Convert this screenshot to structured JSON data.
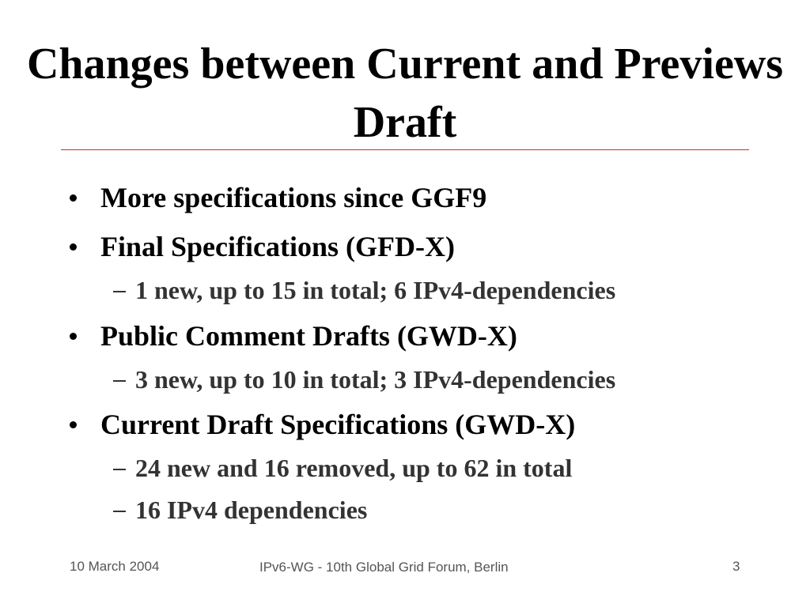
{
  "title": "Changes between Current and Previews Draft",
  "bullets": [
    {
      "text": "More specifications since GGF9"
    },
    {
      "text": "Final Specifications (GFD-X)",
      "sub": [
        "1 new, up to 15 in total; 6 IPv4-dependencies"
      ]
    },
    {
      "text": "Public Comment Drafts (GWD-X)",
      "sub": [
        "3 new, up to 10 in total; 3 IPv4-dependencies"
      ]
    },
    {
      "text": "Current Draft Specifications (GWD-X)",
      "sub": [
        "24 new and 16 removed, up to 62 in total",
        "16 IPv4 dependencies"
      ]
    }
  ],
  "footer": {
    "date": "10 March 2004",
    "center": "IPv6-WG - 10th Global Grid Forum, Berlin",
    "page": "3"
  }
}
